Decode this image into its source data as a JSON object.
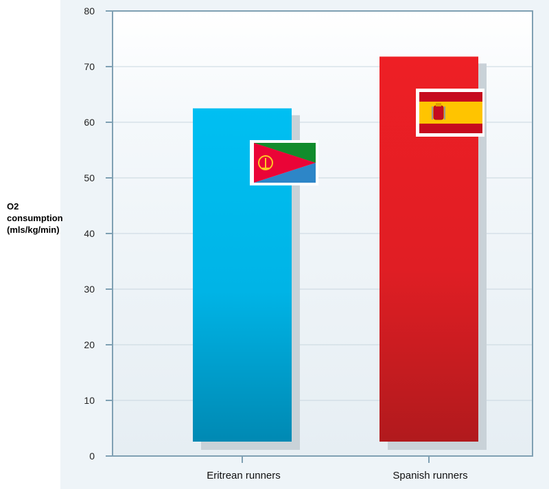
{
  "chart_data": {
    "type": "bar",
    "categories": [
      "Eritrean runners",
      "Spanish runners"
    ],
    "values": [
      62.5,
      71.8
    ],
    "ylabel_lines": [
      "O2",
      "consumption",
      "(mls/kg/min)"
    ],
    "ylim": [
      0,
      80
    ],
    "yticks": [
      "0",
      "10",
      "20",
      "30",
      "40",
      "50",
      "60",
      "70",
      "80"
    ],
    "grid": true,
    "colors": {
      "eritrea_bar_top": "#00bff2",
      "eritrea_bar_bottom": "#0089b3",
      "spain_bar_top": "#ee1f25",
      "spain_bar_bottom": "#b11a1d",
      "panel_bg": "#eef4f8",
      "frame": "#7fa0b3",
      "grid": "#c8d6df"
    },
    "flags": [
      "eritrea-flag",
      "spain-flag"
    ]
  }
}
